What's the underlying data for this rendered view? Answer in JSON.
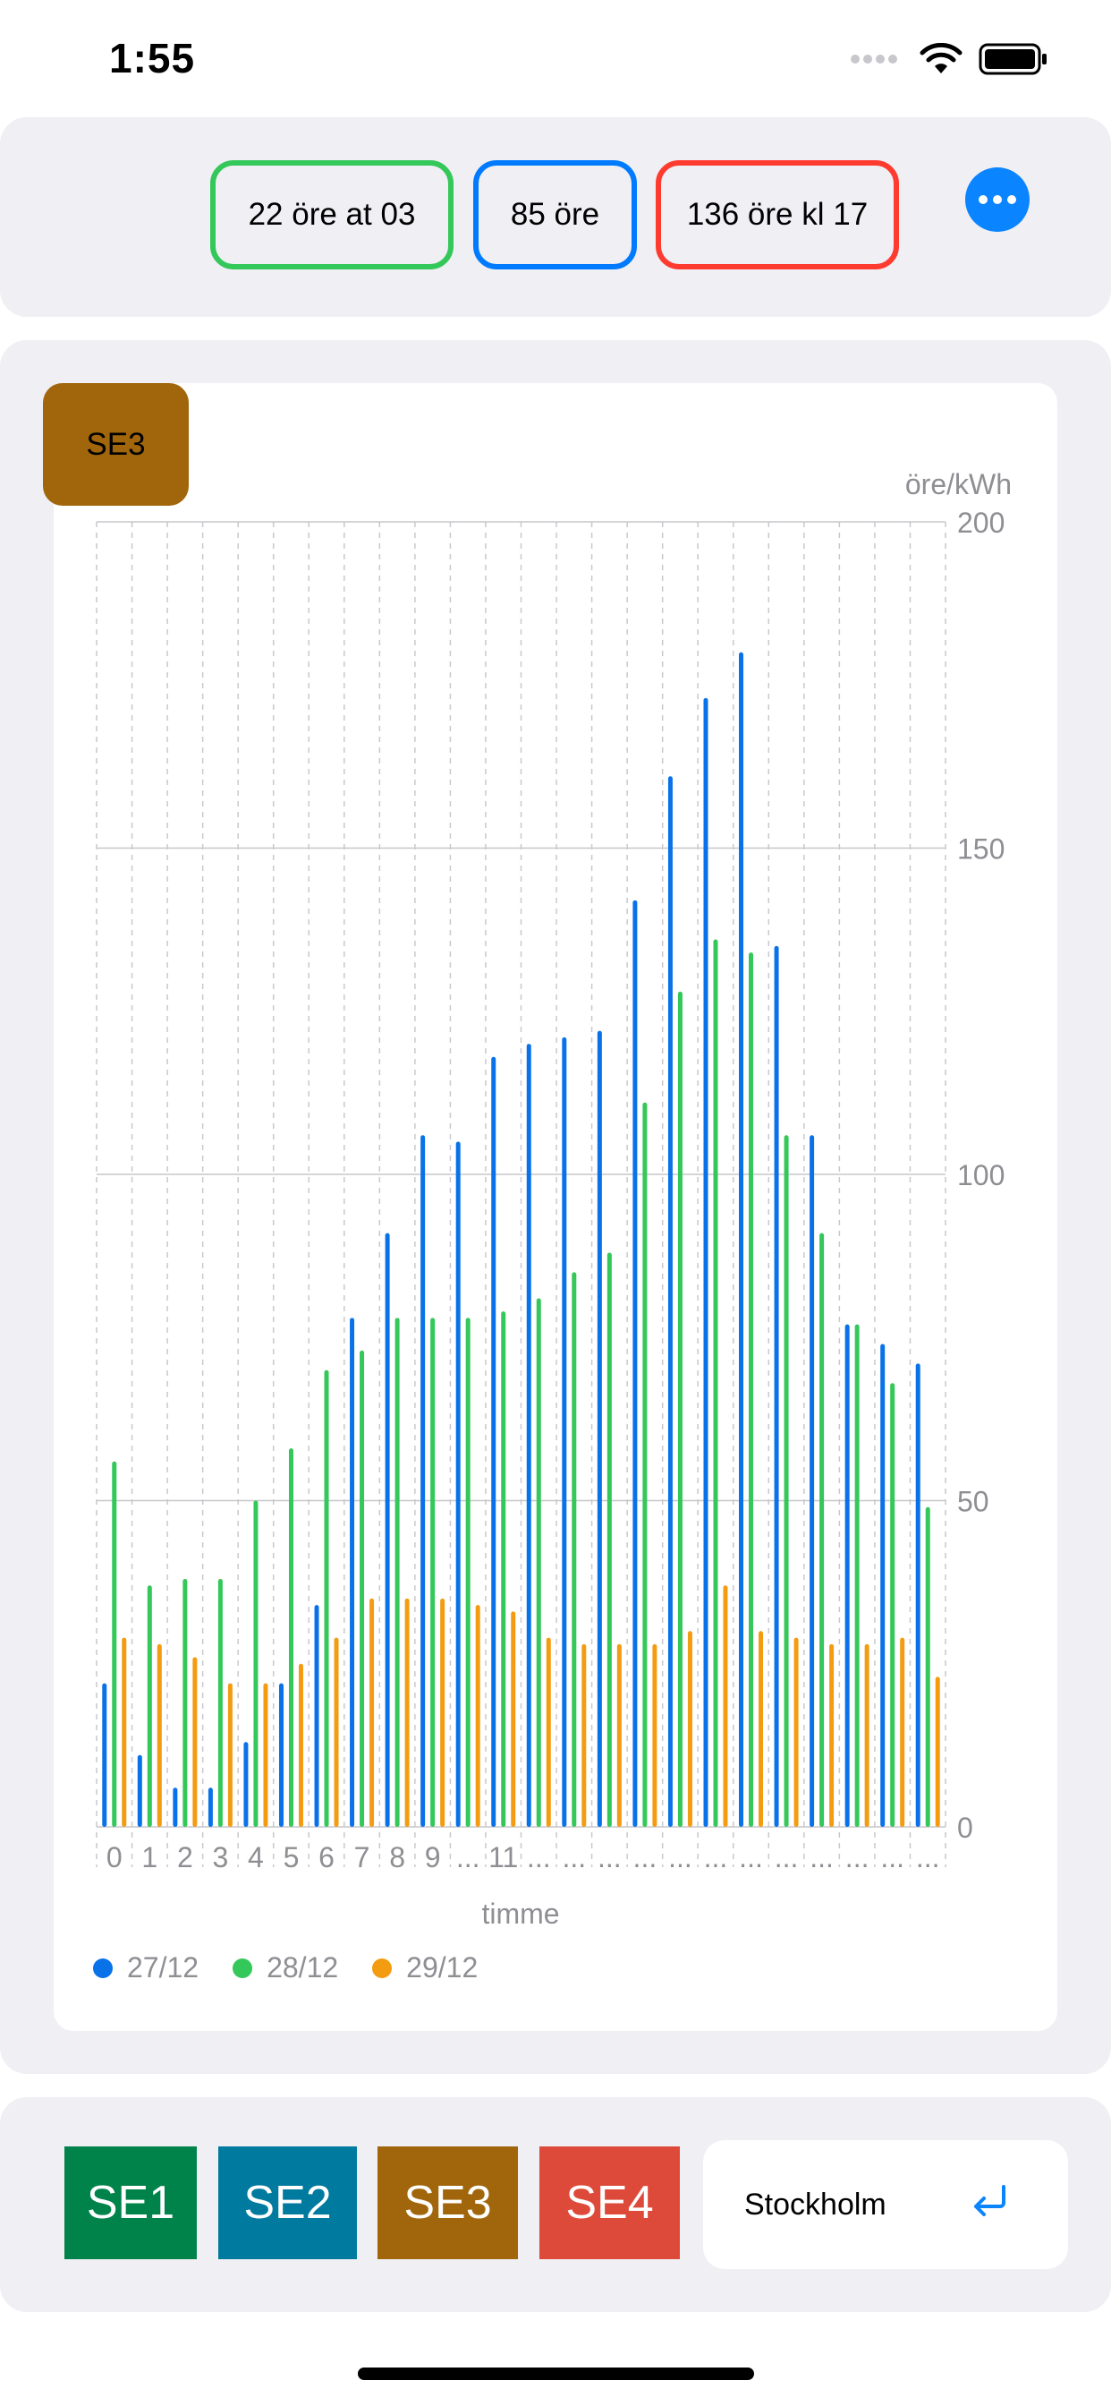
{
  "status_bar": {
    "time": "1:55"
  },
  "summary": {
    "min_label": "22 öre at 03",
    "avg_label": "85 öre",
    "max_label": "136 öre kl 17"
  },
  "zone_badge": "SE3",
  "chart_data": {
    "type": "bar",
    "title": "",
    "xlabel": "timme",
    "ylabel": "öre/kWh",
    "ylim": [
      0,
      200
    ],
    "yticks": [
      0,
      50,
      100,
      150,
      200
    ],
    "grid": true,
    "legend_position": "bottom-left",
    "categories": [
      "0",
      "1",
      "2",
      "3",
      "4",
      "5",
      "6",
      "7",
      "8",
      "9",
      "...",
      "11",
      "...",
      "...",
      "...",
      "...",
      "...",
      "...",
      "...",
      "...",
      "...",
      "...",
      "...",
      "..."
    ],
    "series": [
      {
        "name": "27/12",
        "color": "#0a72e8",
        "values": [
          22,
          11,
          6,
          6,
          13,
          22,
          34,
          78,
          91,
          106,
          105,
          118,
          120,
          121,
          122,
          142,
          161,
          173,
          180,
          135,
          106,
          77,
          74,
          71
        ]
      },
      {
        "name": "28/12",
        "color": "#34c759",
        "values": [
          56,
          37,
          38,
          38,
          50,
          58,
          70,
          73,
          78,
          78,
          78,
          79,
          81,
          85,
          88,
          111,
          128,
          136,
          134,
          106,
          91,
          77,
          68,
          49
        ]
      },
      {
        "name": "29/12",
        "color": "#f39c12",
        "values": [
          29,
          28,
          26,
          22,
          22,
          25,
          29,
          35,
          35,
          35,
          34,
          33,
          29,
          28,
          28,
          28,
          30,
          37,
          30,
          29,
          28,
          28,
          29,
          23
        ]
      }
    ]
  },
  "zones": [
    {
      "label": "SE1",
      "color": "#00834b"
    },
    {
      "label": "SE2",
      "color": "#007a9e"
    },
    {
      "label": "SE3",
      "color": "#a1660c"
    },
    {
      "label": "SE4",
      "color": "#dd4a39"
    }
  ],
  "city": {
    "value": "Stockholm"
  },
  "icons": {
    "wifi": "wifi-icon",
    "battery": "battery-icon",
    "signal": "signal-icon",
    "more": "ellipsis-icon",
    "return": "return-icon"
  }
}
